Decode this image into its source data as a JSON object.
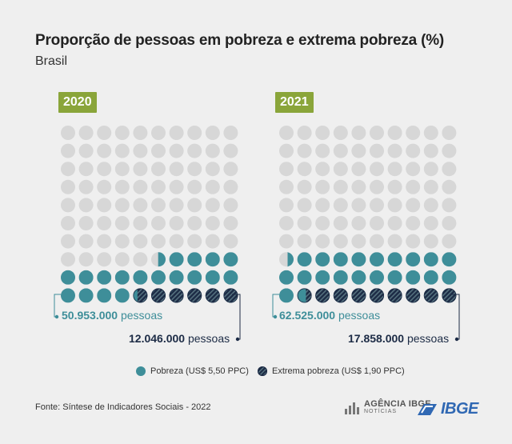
{
  "header": {
    "title": "Proporção de pessoas em pobreza e extrema pobreza (%)",
    "subtitle": "Brasil"
  },
  "colors": {
    "background": "#efefef",
    "empty": "#d7d7d7",
    "poverty": "#3e8e99",
    "extreme_dark": "#1c2b45",
    "extreme_light": "#55717e",
    "year_badge": "#8aa53a"
  },
  "chart_data": [
    {
      "type": "waffle",
      "year": "2020",
      "rows": 10,
      "cols": 10,
      "poverty_units": 24.5,
      "extreme_poverty_units": 5.7,
      "poverty_label_value": "50.953.000",
      "extreme_label_value": "12.046.000",
      "unit_word": "pessoas"
    },
    {
      "type": "waffle",
      "year": "2021",
      "rows": 10,
      "cols": 10,
      "poverty_units": 29.4,
      "extreme_poverty_units": 8.4,
      "poverty_label_value": "62.525.000",
      "extreme_label_value": "17.858.000",
      "unit_word": "pessoas"
    }
  ],
  "legend": {
    "poverty": "Pobreza (US$ 5,50 PPC)",
    "extreme": "Extrema pobreza (US$ 1,90 PPC)"
  },
  "footer": {
    "source": "Fonte: Síntese de Indicadores Sociais - 2022",
    "agencia_top": "AGÊNCIA IBGE",
    "agencia_bottom": "NOTÍCIAS",
    "ibge": "IBGE"
  }
}
